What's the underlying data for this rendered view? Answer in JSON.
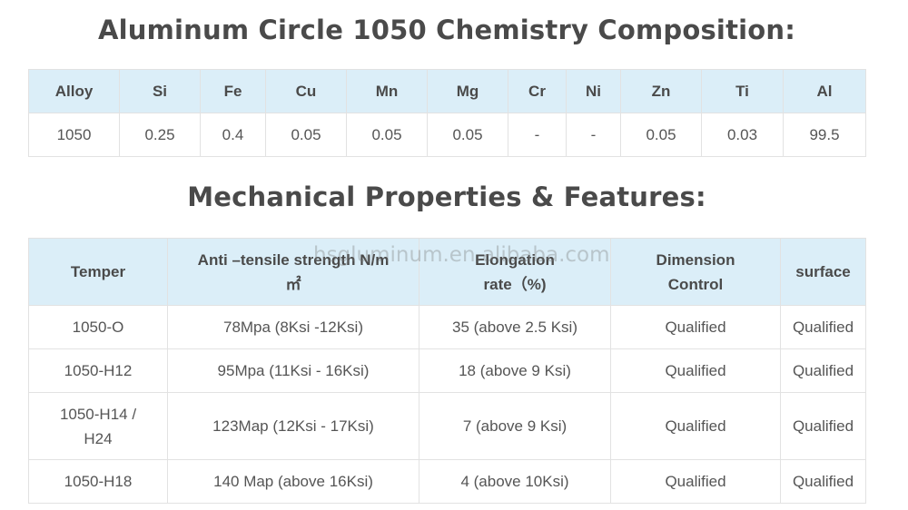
{
  "chemistry": {
    "title": "Aluminum Circle 1050 Chemistry Composition:",
    "headers": [
      "Alloy",
      "Si",
      "Fe",
      "Cu",
      "Mn",
      "Mg",
      "Cr",
      "Ni",
      "Zn",
      "Ti",
      "Al"
    ],
    "row": [
      "1050",
      "0.25",
      "0.4",
      "0.05",
      "0.05",
      "0.05",
      "-",
      "-",
      "0.05",
      "0.03",
      "99.5"
    ]
  },
  "mechanical": {
    "title": "Mechanical Properties & Features:",
    "headers": {
      "temper": "Temper",
      "tensile_line1": "Anti –tensile strength N/m",
      "tensile_line2": "㎡",
      "elongation_line1": "Elongation",
      "elongation_line2": "rate（%)",
      "dimension_line1": "Dimension",
      "dimension_line2": "Control",
      "surface": "surface"
    },
    "rows": [
      {
        "temper": "1050-O",
        "tensile": "78Mpa (8Ksi -12Ksi)",
        "elongation": "35 (above 2.5 Ksi)",
        "dimension": "Qualified",
        "surface": "Qualified"
      },
      {
        "temper": "1050-H12",
        "tensile": "95Mpa (11Ksi - 16Ksi)",
        "elongation": "18 (above 9 Ksi)",
        "dimension": "Qualified",
        "surface": "Qualified"
      },
      {
        "temper_line1": "1050-H14 /",
        "temper_line2": "H24",
        "tensile": "123Map (12Ksi - 17Ksi)",
        "elongation": "7 (above 9 Ksi)",
        "dimension": "Qualified",
        "surface": "Qualified"
      },
      {
        "temper": "1050-H18",
        "tensile": "140 Map (above 16Ksi)",
        "elongation": "4 (above 10Ksi)",
        "dimension": "Qualified",
        "surface": "Qualified"
      }
    ]
  },
  "watermark": "hsgluminum.en.alibaba.com",
  "colors": {
    "header_bg": "#dbeef8",
    "border": "#e2e2e2",
    "text": "#555555",
    "title": "#4a4a4a"
  }
}
